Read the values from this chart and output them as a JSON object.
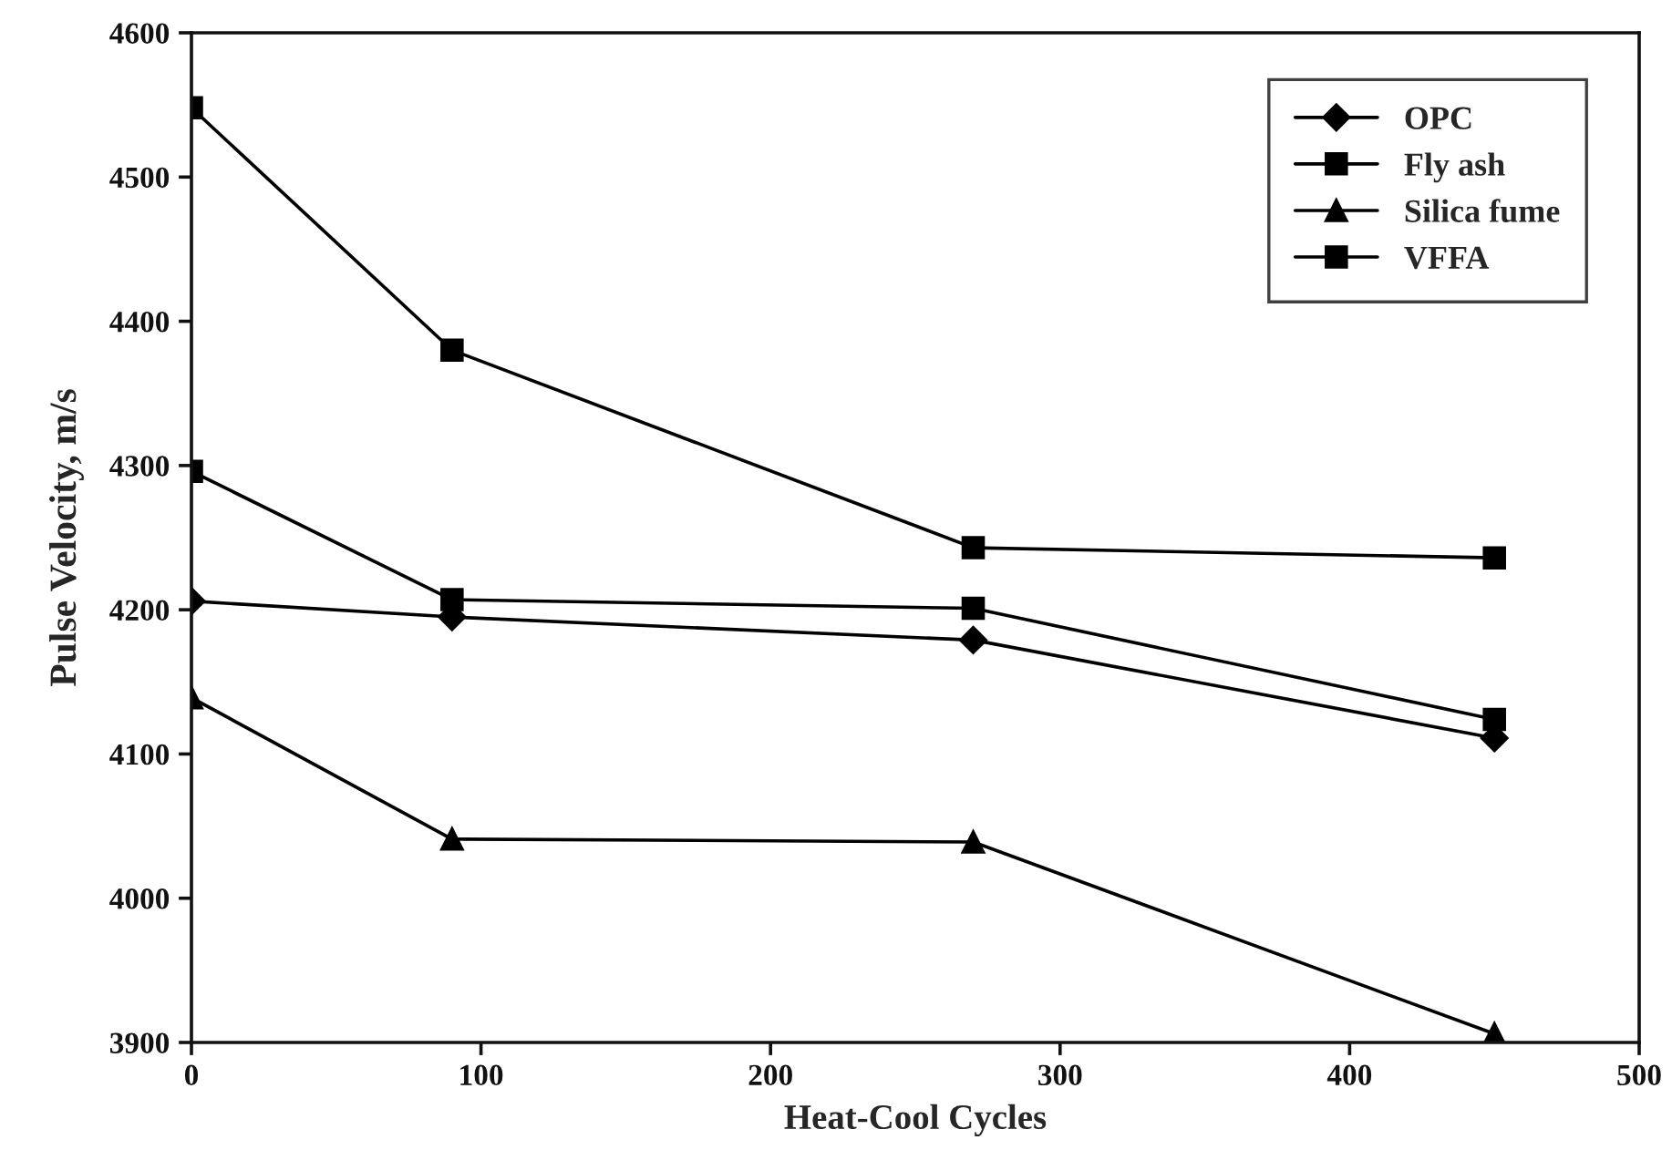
{
  "chart_data": {
    "type": "line",
    "xlabel": "Heat-Cool Cycles",
    "ylabel": "Pulse Velocity, m/s",
    "x": [
      0,
      90,
      270,
      450
    ],
    "series": [
      {
        "name": "OPC",
        "color": "#000000",
        "marker": "diamond",
        "values": [
          4206,
          4195,
          4179,
          4111
        ]
      },
      {
        "name": "Fly ash",
        "color": "#000000",
        "marker": "square",
        "values": [
          4296,
          4207,
          4201,
          4124
        ]
      },
      {
        "name": "Silica fume",
        "color": "#000000",
        "marker": "triangle",
        "values": [
          4139,
          4041,
          4039,
          3906
        ]
      },
      {
        "name": "VFFA",
        "color": "#000000",
        "marker": "square",
        "values": [
          4548,
          4380,
          4243,
          4236
        ]
      }
    ],
    "xlim": [
      0,
      500
    ],
    "xticks": [
      0,
      100,
      200,
      300,
      400,
      500
    ],
    "ylim": [
      3900,
      4600
    ],
    "yticks": [
      3900,
      4000,
      4100,
      4200,
      4300,
      4400,
      4500,
      4600
    ],
    "grid": false,
    "legend": "top right",
    "line_style": "solid"
  }
}
